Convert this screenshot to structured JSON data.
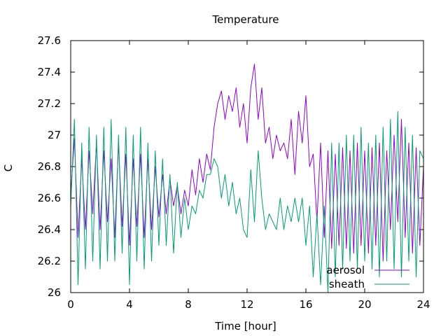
{
  "chart_data": {
    "type": "line",
    "title": "Temperature",
    "xlabel": "Time [hour]",
    "ylabel": "C",
    "xlim": [
      0,
      24
    ],
    "ylim": [
      26,
      27.6
    ],
    "xticks": [
      0,
      4,
      8,
      12,
      16,
      20,
      24
    ],
    "yticks": [
      26,
      26.2,
      26.4,
      26.6,
      26.8,
      27,
      27.2,
      27.4,
      27.6
    ],
    "xtick_labels": [
      "0",
      "4",
      "8",
      "12",
      "16",
      "20",
      "24"
    ],
    "ytick_labels": [
      "26",
      "26.2",
      "26.4",
      "26.6",
      "26.8",
      "27",
      "27.2",
      "27.4",
      "27.6"
    ],
    "grid": false,
    "legend_position": "bottom-right",
    "series": [
      {
        "name": "aerosol",
        "color": "#9400d3",
        "x": [
          0,
          0.25,
          0.5,
          0.75,
          1,
          1.25,
          1.5,
          1.75,
          2,
          2.25,
          2.5,
          2.75,
          3,
          3.25,
          3.5,
          3.75,
          4,
          4.25,
          4.5,
          4.75,
          5,
          5.25,
          5.5,
          5.75,
          6,
          6.25,
          6.5,
          6.75,
          7,
          7.25,
          7.5,
          7.75,
          8,
          8.25,
          8.5,
          8.75,
          9,
          9.25,
          9.5,
          9.75,
          10,
          10.25,
          10.5,
          10.75,
          11,
          11.25,
          11.5,
          11.75,
          12,
          12.25,
          12.5,
          12.75,
          13,
          13.25,
          13.5,
          13.75,
          14,
          14.25,
          14.5,
          14.75,
          15,
          15.25,
          15.5,
          15.75,
          16,
          16.25,
          16.5,
          16.75,
          17,
          17.25,
          17.5,
          17.75,
          18,
          18.25,
          18.5,
          18.75,
          19,
          19.25,
          19.5,
          19.75,
          20,
          20.25,
          20.5,
          20.75,
          21,
          21.25,
          21.5,
          21.75,
          22,
          22.25,
          22.5,
          22.75,
          23,
          23.25,
          23.5,
          23.75,
          24
        ],
        "y": [
          26.62,
          26.98,
          26.35,
          26.85,
          26.4,
          26.9,
          26.5,
          26.95,
          26.4,
          26.9,
          26.45,
          26.85,
          26.35,
          26.95,
          26.42,
          26.88,
          26.3,
          26.85,
          26.42,
          26.88,
          26.35,
          26.85,
          26.4,
          26.8,
          26.48,
          26.75,
          26.5,
          26.72,
          26.55,
          26.68,
          26.5,
          26.65,
          26.55,
          26.78,
          26.62,
          26.85,
          26.7,
          26.88,
          26.78,
          27.05,
          27.2,
          27.28,
          27.1,
          27.25,
          27.15,
          27.3,
          27.05,
          27.2,
          26.95,
          27.3,
          27.45,
          27.1,
          27.3,
          26.95,
          27.05,
          26.85,
          27.0,
          26.9,
          26.95,
          26.85,
          27.1,
          26.75,
          27.15,
          26.95,
          27.25,
          26.8,
          26.88,
          26.45,
          26.95,
          26.35,
          26.9,
          26.28,
          26.88,
          26.3,
          26.92,
          26.28,
          26.9,
          26.25,
          26.95,
          26.3,
          26.9,
          26.25,
          26.92,
          26.3,
          26.95,
          26.2,
          26.9,
          26.4,
          27.0,
          26.45,
          27.1,
          26.35,
          26.95,
          26.25,
          26.92,
          26.3,
          26.8
        ]
      },
      {
        "name": "sheath",
        "color": "#009e73",
        "x": [
          0,
          0.25,
          0.5,
          0.75,
          1,
          1.25,
          1.5,
          1.75,
          2,
          2.25,
          2.5,
          2.75,
          3,
          3.25,
          3.5,
          3.75,
          4,
          4.25,
          4.5,
          4.75,
          5,
          5.25,
          5.5,
          5.75,
          6,
          6.25,
          6.5,
          6.75,
          7,
          7.25,
          7.5,
          7.75,
          8,
          8.25,
          8.5,
          8.75,
          9,
          9.25,
          9.5,
          9.75,
          10,
          10.25,
          10.5,
          10.75,
          11,
          11.25,
          11.5,
          11.75,
          12,
          12.25,
          12.5,
          12.75,
          13,
          13.25,
          13.5,
          13.75,
          14,
          14.25,
          14.5,
          14.75,
          15,
          15.25,
          15.5,
          15.75,
          16,
          16.25,
          16.5,
          16.75,
          17,
          17.25,
          17.5,
          17.75,
          18,
          18.25,
          18.5,
          18.75,
          19,
          19.25,
          19.5,
          19.75,
          20,
          20.25,
          20.5,
          20.75,
          21,
          21.25,
          21.5,
          21.75,
          22,
          22.25,
          22.5,
          22.75,
          23,
          23.25,
          23.5,
          23.75,
          24
        ],
        "y": [
          26.55,
          27.1,
          26.05,
          26.95,
          26.15,
          27.05,
          26.2,
          27.0,
          26.15,
          27.05,
          26.2,
          27.1,
          26.2,
          27.0,
          26.25,
          27.05,
          26.05,
          27.0,
          26.2,
          27.05,
          26.15,
          26.95,
          26.2,
          26.9,
          26.3,
          26.85,
          26.3,
          26.75,
          26.25,
          26.7,
          26.35,
          26.6,
          26.4,
          26.55,
          26.5,
          26.65,
          26.6,
          26.75,
          26.75,
          26.85,
          26.8,
          26.6,
          26.75,
          26.55,
          26.7,
          26.5,
          26.6,
          26.4,
          26.35,
          26.78,
          26.45,
          26.9,
          26.6,
          26.4,
          26.5,
          26.45,
          26.4,
          26.6,
          26.4,
          26.55,
          26.45,
          26.6,
          26.45,
          26.6,
          26.3,
          26.55,
          26.1,
          26.5,
          26.05,
          26.55,
          26.0,
          26.95,
          26.1,
          26.95,
          26.15,
          27.0,
          26.2,
          27.0,
          26.15,
          27.05,
          26.2,
          26.95,
          26.15,
          27.0,
          26.1,
          27.05,
          26.2,
          27.1,
          26.15,
          27.15,
          26.1,
          27.05,
          26.2,
          27.0,
          26.1,
          26.9,
          26.85
        ]
      }
    ]
  }
}
